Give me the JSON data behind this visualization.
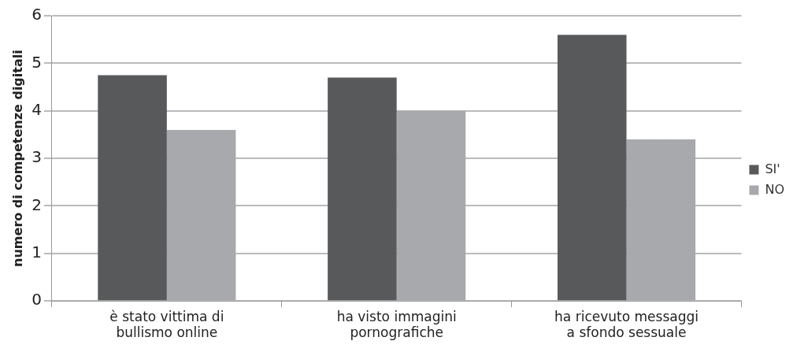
{
  "chart_data": {
    "type": "bar",
    "ylabel": "numero di competenze digitali",
    "categories": [
      "è stato vittima di\nbullismo online",
      "ha visto immagini\npornografiche",
      "ha ricevuto messaggi\na sfondo sessuale"
    ],
    "series": [
      {
        "name": "SI'",
        "color": "#58595b",
        "values": [
          4.75,
          4.7,
          5.6
        ]
      },
      {
        "name": "NO",
        "color": "#a7a9ac",
        "values": [
          3.6,
          4.0,
          3.4
        ]
      }
    ],
    "ylim": [
      0,
      6
    ],
    "yticks": [
      0,
      1,
      2,
      3,
      4,
      5,
      6
    ],
    "grid": "y",
    "legend": "right"
  }
}
